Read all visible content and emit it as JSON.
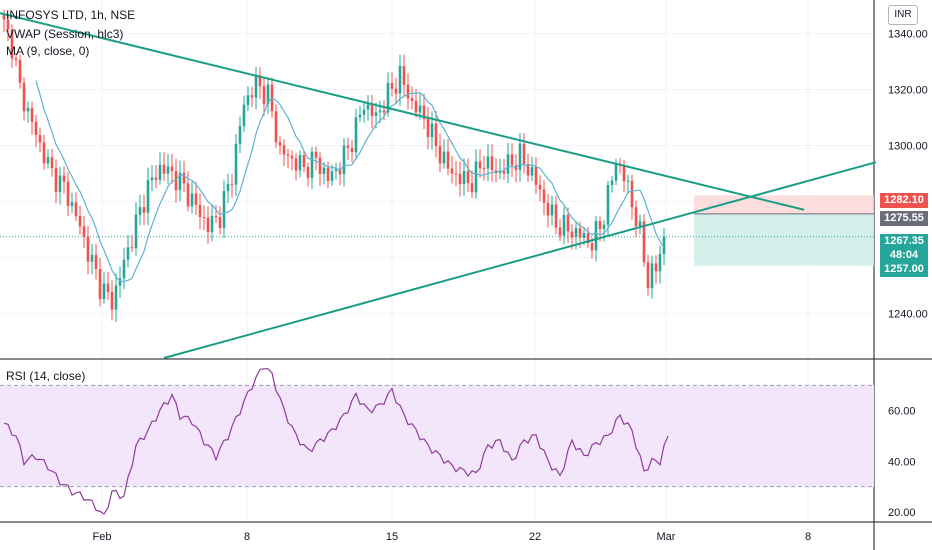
{
  "main_legend": {
    "symbol": "INFOSYS LTD, 1h, NSE",
    "vwap": "VWAP (Session, hlc3)",
    "ma": "MA (9, close, 0)"
  },
  "currency_button": "INR",
  "rsi_legend": "RSI (14, close)",
  "price_badges": {
    "stop": "1282.10",
    "entry": "1275.55",
    "last": "1267.35",
    "countdown": "48:04",
    "target": "1257.00"
  },
  "colors": {
    "up": "#26a69a",
    "down": "#ef5350",
    "ma_line": "#5fb3d0",
    "trendline": "#1a9e86",
    "rsi_line": "#8e3d99",
    "rsi_band": "#f3e6fb",
    "stop_zone": "#fcd6d6",
    "target_zone": "#cfeee9"
  },
  "chart_data": [
    {
      "type": "candlestick",
      "title": "INFOSYS LTD, 1h, NSE",
      "x_ticks": [
        "Feb",
        "8",
        "15",
        "22",
        "Mar",
        "8"
      ],
      "y_ticks": [
        "1340.00",
        "1320.00",
        "1300.00",
        "1240.00"
      ],
      "ylim": [
        1224,
        1352
      ],
      "series": [
        {
          "name": "INFOSYS LTD",
          "kind": "ohlc",
          "anchors_close": [
            [
              0,
              1343
            ],
            [
              2,
              1336
            ],
            [
              4,
              1320
            ],
            [
              6,
              1312
            ],
            [
              9,
              1300
            ],
            [
              12,
              1290
            ],
            [
              15,
              1285
            ],
            [
              18,
              1275
            ],
            [
              21,
              1262
            ],
            [
              24,
              1250
            ],
            [
              27,
              1244
            ],
            [
              30,
              1258
            ],
            [
              33,
              1272
            ],
            [
              36,
              1285
            ],
            [
              39,
              1292
            ],
            [
              42,
              1290
            ],
            [
              45,
              1285
            ],
            [
              48,
              1278
            ],
            [
              51,
              1271
            ],
            [
              54,
              1275
            ],
            [
              57,
              1290
            ],
            [
              60,
              1315
            ],
            [
              63,
              1322
            ],
            [
              66,
              1318
            ],
            [
              69,
              1298
            ],
            [
              72,
              1295
            ],
            [
              75,
              1292
            ],
            [
              78,
              1295
            ],
            [
              81,
              1288
            ],
            [
              84,
              1293
            ],
            [
              87,
              1302
            ],
            [
              90,
              1315
            ],
            [
              93,
              1310
            ],
            [
              96,
              1318
            ],
            [
              99,
              1325
            ],
            [
              102,
              1315
            ],
            [
              105,
              1310
            ],
            [
              108,
              1300
            ],
            [
              111,
              1292
            ],
            [
              114,
              1288
            ],
            [
              117,
              1287
            ],
            [
              120,
              1295
            ],
            [
              123,
              1290
            ],
            [
              126,
              1293
            ],
            [
              129,
              1296
            ],
            [
              132,
              1290
            ],
            [
              135,
              1280
            ],
            [
              138,
              1272
            ],
            [
              141,
              1270
            ],
            [
              144,
              1268
            ],
            [
              147,
              1265
            ],
            [
              150,
              1275
            ],
            [
              153,
              1295
            ],
            [
              156,
              1285
            ],
            [
              159,
              1268
            ],
            [
              161,
              1252
            ],
            [
              163,
              1256
            ],
            [
              165,
              1268
            ]
          ]
        },
        {
          "name": "MA (9, close, 0)",
          "kind": "line"
        }
      ],
      "trendlines": [
        {
          "name": "resistance",
          "from": [
            -3,
            1348
          ],
          "to": [
            200,
            1277
          ]
        },
        {
          "name": "support",
          "from": [
            40,
            1224
          ],
          "to": [
            218,
            1294
          ]
        }
      ],
      "position": {
        "entry": 1275.55,
        "stop": 1282.1,
        "target": 1257.0,
        "last": 1267.35
      }
    },
    {
      "type": "line",
      "title": "RSI (14, close)",
      "y_ticks": [
        "60.00",
        "40.00",
        "20.00"
      ],
      "ylim": [
        16,
        80
      ],
      "bands": [
        30,
        70
      ],
      "series": [
        {
          "name": "RSI (14, close)",
          "anchors": [
            [
              0,
              55
            ],
            [
              3,
              50
            ],
            [
              5,
              40
            ],
            [
              8,
              42
            ],
            [
              11,
              38
            ],
            [
              14,
              32
            ],
            [
              17,
              28
            ],
            [
              20,
              26
            ],
            [
              23,
              22
            ],
            [
              25,
              18
            ],
            [
              27,
              28
            ],
            [
              30,
              26
            ],
            [
              33,
              46
            ],
            [
              36,
              52
            ],
            [
              39,
              60
            ],
            [
              42,
              66
            ],
            [
              44,
              58
            ],
            [
              47,
              56
            ],
            [
              50,
              48
            ],
            [
              53,
              42
            ],
            [
              56,
              50
            ],
            [
              59,
              60
            ],
            [
              62,
              70
            ],
            [
              65,
              78
            ],
            [
              67,
              74
            ],
            [
              70,
              60
            ],
            [
              73,
              50
            ],
            [
              76,
              44
            ],
            [
              79,
              48
            ],
            [
              82,
              52
            ],
            [
              85,
              58
            ],
            [
              88,
              66
            ],
            [
              91,
              60
            ],
            [
              94,
              62
            ],
            [
              97,
              68
            ],
            [
              100,
              58
            ],
            [
              103,
              52
            ],
            [
              106,
              46
            ],
            [
              109,
              42
            ],
            [
              112,
              38
            ],
            [
              115,
              36
            ],
            [
              118,
              35
            ],
            [
              121,
              46
            ],
            [
              124,
              48
            ],
            [
              127,
              40
            ],
            [
              130,
              48
            ],
            [
              133,
              50
            ],
            [
              136,
              40
            ],
            [
              139,
              34
            ],
            [
              142,
              48
            ],
            [
              145,
              42
            ],
            [
              148,
              47
            ],
            [
              151,
              50
            ],
            [
              154,
              58
            ],
            [
              157,
              52
            ],
            [
              160,
              36
            ],
            [
              162,
              40
            ],
            [
              164,
              40
            ],
            [
              166,
              50
            ]
          ]
        }
      ]
    }
  ]
}
